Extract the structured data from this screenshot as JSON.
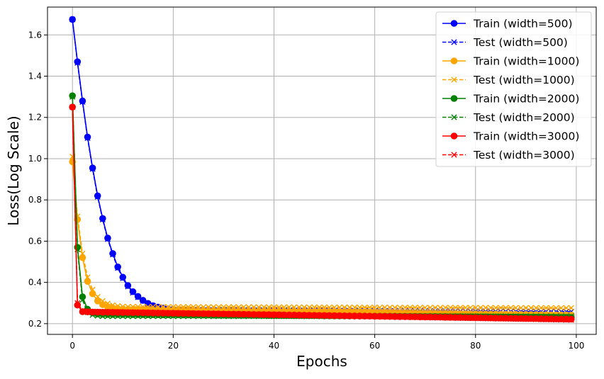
{
  "chart_data": {
    "type": "line",
    "xlabel": "Epochs",
    "ylabel": "Loss(Log Scale)",
    "xlim": [
      -4.95,
      103.95
    ],
    "ylim": [
      0.148,
      1.735
    ],
    "x_ticks": [
      0,
      20,
      40,
      60,
      80,
      100
    ],
    "y_ticks": [
      0.2,
      0.4,
      0.6,
      0.8,
      1.0,
      1.2,
      1.4,
      1.6
    ],
    "x_tick_labels": [
      "0",
      "20",
      "40",
      "60",
      "80",
      "100"
    ],
    "y_tick_labels": [
      "0.2",
      "0.4",
      "0.6",
      "0.8",
      "1.0",
      "1.2",
      "1.4",
      "1.6"
    ],
    "grid": true,
    "legend_position": "top-right",
    "series": [
      {
        "name": "Train (width=500)",
        "color": "#0000ff",
        "style": "solid",
        "marker": "circle",
        "start": [
          1.675,
          1.47,
          1.28,
          1.105,
          0.955,
          0.82,
          0.71,
          0.615,
          0.54,
          0.475,
          0.425,
          0.385,
          0.355,
          0.332,
          0.313,
          0.298,
          0.287,
          0.28,
          0.275,
          0.271,
          0.268,
          0.266
        ],
        "end": 0.242
      },
      {
        "name": "Test (width=500)",
        "color": "#0000ff",
        "style": "dashed",
        "marker": "x",
        "start": [
          1.675,
          1.465,
          1.275,
          1.1,
          0.95,
          0.815,
          0.705,
          0.61,
          0.535,
          0.47,
          0.42,
          0.38,
          0.35,
          0.328,
          0.31,
          0.296,
          0.286,
          0.279,
          0.274,
          0.27,
          0.268,
          0.266
        ],
        "end": 0.258
      },
      {
        "name": "Train (width=1000)",
        "color": "#ffa500",
        "style": "solid",
        "marker": "circle",
        "start": [
          0.985,
          0.705,
          0.52,
          0.405,
          0.345,
          0.31,
          0.292,
          0.282,
          0.276,
          0.272,
          0.27,
          0.268
        ],
        "end": 0.242
      },
      {
        "name": "Test (width=1000)",
        "color": "#ffa500",
        "style": "dashed",
        "marker": "x",
        "start": [
          1.01,
          0.72,
          0.54,
          0.425,
          0.365,
          0.33,
          0.31,
          0.298,
          0.29,
          0.286,
          0.283,
          0.282
        ],
        "end": 0.276
      },
      {
        "name": "Train (width=2000)",
        "color": "#008000",
        "style": "solid",
        "marker": "circle",
        "start": [
          1.305,
          0.57,
          0.33,
          0.27,
          0.252,
          0.247,
          0.245
        ],
        "end": 0.23
      },
      {
        "name": "Test (width=2000)",
        "color": "#008000",
        "style": "dashed",
        "marker": "x",
        "start": [
          1.3,
          0.56,
          0.315,
          0.255,
          0.242,
          0.238,
          0.236
        ],
        "end": 0.236
      },
      {
        "name": "Train (width=3000)",
        "color": "#ff0000",
        "style": "solid",
        "marker": "circle",
        "start": [
          1.25,
          0.29,
          0.258,
          0.257,
          0.256
        ],
        "end": 0.222
      },
      {
        "name": "Test (width=3000)",
        "color": "#ff0000",
        "style": "dashed",
        "marker": "x",
        "start": [
          1.25,
          0.3,
          0.262,
          0.26,
          0.259
        ],
        "end": 0.218
      }
    ],
    "x_last": 99
  }
}
